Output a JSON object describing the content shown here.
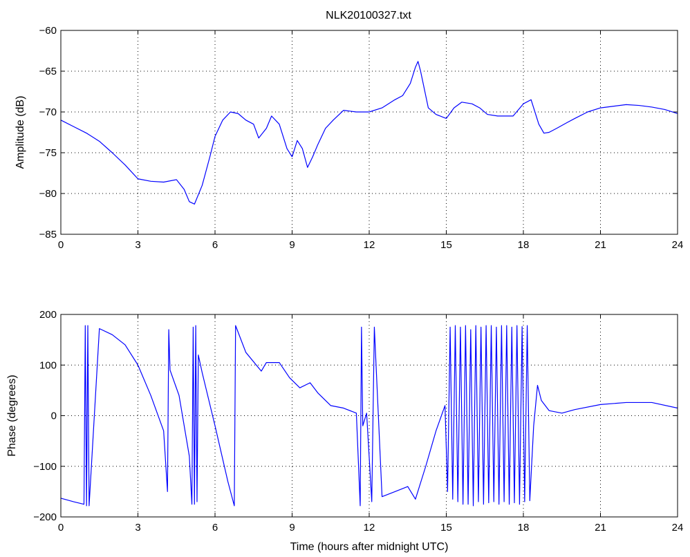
{
  "figure": {
    "title": "NLK20100327.txt",
    "line_color": "#0000ff",
    "background": "#ffffff"
  },
  "chart_data": [
    {
      "type": "line",
      "title": "NLK20100327.txt",
      "xlabel": "",
      "ylabel": "Amplitude (dB)",
      "xlim": [
        0,
        24
      ],
      "ylim": [
        -85,
        -60
      ],
      "xticks": [
        0,
        3,
        6,
        9,
        12,
        15,
        18,
        21,
        24
      ],
      "yticks": [
        -85,
        -80,
        -75,
        -70,
        -65,
        -60
      ],
      "xtick_labels": [
        "0",
        "3",
        "6",
        "9",
        "12",
        "15",
        "18",
        "21",
        "24"
      ],
      "ytick_labels": [
        "−85",
        "−80",
        "−75",
        "−70",
        "−65",
        "−60"
      ],
      "grid": true,
      "series": [
        {
          "color": "#0000ff",
          "x": [
            0,
            0.5,
            1.0,
            1.5,
            2.0,
            2.5,
            3.0,
            3.5,
            4.0,
            4.5,
            4.8,
            5.0,
            5.2,
            5.5,
            5.8,
            6.0,
            6.3,
            6.6,
            6.9,
            7.2,
            7.5,
            7.7,
            8.0,
            8.2,
            8.5,
            8.8,
            9.0,
            9.2,
            9.4,
            9.6,
            9.8,
            10.0,
            10.3,
            10.6,
            11.0,
            11.5,
            12.0,
            12.5,
            13.0,
            13.3,
            13.6,
            13.8,
            13.9,
            14.0,
            14.3,
            14.6,
            15.0,
            15.3,
            15.6,
            16.0,
            16.3,
            16.6,
            17.0,
            17.3,
            17.6,
            18.0,
            18.3,
            18.6,
            18.8,
            19.0,
            19.3,
            19.7,
            20.0,
            20.5,
            21.0,
            21.5,
            22.0,
            22.5,
            23.0,
            23.5,
            24.0
          ],
          "y": [
            -71.0,
            -71.8,
            -72.6,
            -73.6,
            -75.0,
            -76.5,
            -78.2,
            -78.5,
            -78.6,
            -78.3,
            -79.5,
            -81.0,
            -81.3,
            -79.0,
            -75.5,
            -73.0,
            -71.0,
            -70.0,
            -70.2,
            -71.0,
            -71.5,
            -73.2,
            -72.0,
            -70.5,
            -71.5,
            -74.5,
            -75.5,
            -73.5,
            -74.5,
            -76.8,
            -75.5,
            -74.0,
            -72.0,
            -71.0,
            -69.8,
            -70.0,
            -70.0,
            -69.5,
            -68.5,
            -68.0,
            -66.5,
            -64.5,
            -63.8,
            -65.0,
            -69.5,
            -70.3,
            -70.8,
            -69.5,
            -68.8,
            -69.0,
            -69.5,
            -70.3,
            -70.5,
            -70.5,
            -70.5,
            -69.0,
            -68.5,
            -71.5,
            -72.6,
            -72.5,
            -72.0,
            -71.3,
            -70.8,
            -70.0,
            -69.5,
            -69.3,
            -69.1,
            -69.2,
            -69.4,
            -69.7,
            -70.2
          ]
        }
      ]
    },
    {
      "type": "line",
      "title": "",
      "xlabel": "Time (hours after midnight UTC)",
      "ylabel": "Phase (degrees)",
      "xlim": [
        0,
        24
      ],
      "ylim": [
        -200,
        200
      ],
      "xticks": [
        0,
        3,
        6,
        9,
        12,
        15,
        18,
        21,
        24
      ],
      "yticks": [
        -200,
        -100,
        0,
        100,
        200
      ],
      "xtick_labels": [
        "0",
        "3",
        "6",
        "9",
        "12",
        "15",
        "18",
        "21",
        "24"
      ],
      "ytick_labels": [
        "−200",
        "−100",
        "0",
        "100",
        "200"
      ],
      "grid": true,
      "series": [
        {
          "color": "#0000ff",
          "x": [
            0,
            0.5,
            0.9,
            0.95,
            1.0,
            1.05,
            1.1,
            1.5,
            2.0,
            2.5,
            3.0,
            3.5,
            4.0,
            4.15,
            4.2,
            4.25,
            4.6,
            5.0,
            5.1,
            5.15,
            5.2,
            5.25,
            5.3,
            5.35,
            5.5,
            6.0,
            6.5,
            6.75,
            6.8,
            7.2,
            7.8,
            8.0,
            8.5,
            8.9,
            9.3,
            9.7,
            10.0,
            10.5,
            11.0,
            11.5,
            11.65,
            11.7,
            11.75,
            11.9,
            12.1,
            12.2,
            12.5,
            13.0,
            13.5,
            13.8,
            14.2,
            14.6,
            14.95,
            15.05,
            15.15,
            15.25,
            15.35,
            15.45,
            15.55,
            15.65,
            15.75,
            15.85,
            15.95,
            16.05,
            16.15,
            16.25,
            16.35,
            16.45,
            16.55,
            16.65,
            16.75,
            16.85,
            16.95,
            17.05,
            17.15,
            17.25,
            17.35,
            17.45,
            17.55,
            17.65,
            17.75,
            17.85,
            17.95,
            18.05,
            18.15,
            18.25,
            18.4,
            18.55,
            18.7,
            19.0,
            19.5,
            20.0,
            21.0,
            22.0,
            23.0,
            24.0
          ],
          "y": [
            -163,
            -170,
            -175,
            178,
            -178,
            178,
            -178,
            172,
            160,
            140,
            100,
            40,
            -30,
            -150,
            170,
            90,
            40,
            -80,
            -175,
            175,
            -175,
            178,
            -170,
            120,
            85,
            -20,
            -130,
            -178,
            178,
            125,
            88,
            105,
            105,
            75,
            55,
            65,
            45,
            20,
            15,
            5,
            -178,
            175,
            -20,
            5,
            -170,
            175,
            -160,
            -150,
            -140,
            -165,
            -100,
            -30,
            20,
            -150,
            175,
            -165,
            178,
            -170,
            175,
            -175,
            178,
            -175,
            170,
            -178,
            178,
            -170,
            175,
            -175,
            178,
            -172,
            178,
            -170,
            175,
            -175,
            178,
            -170,
            178,
            -175,
            175,
            -172,
            178,
            -175,
            176,
            -170,
            178,
            -168,
            -20,
            60,
            30,
            10,
            5,
            12,
            22,
            26,
            26,
            15
          ]
        }
      ]
    }
  ]
}
